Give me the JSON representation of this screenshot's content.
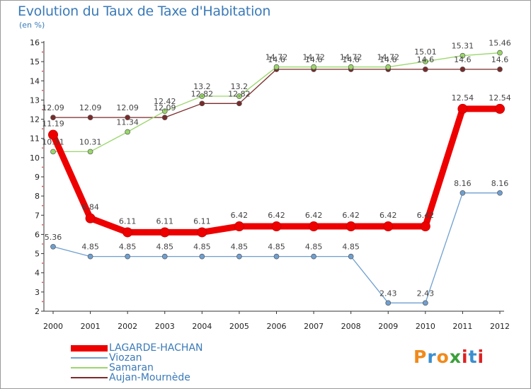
{
  "title": "Evolution du Taux de Taxe d'Habitation",
  "unit": "(en %)",
  "brand": {
    "text": "Proxiti",
    "letter_colors": [
      "#f08a1c",
      "#3a8fd0",
      "#f08a1c",
      "#3aa03a",
      "#d22",
      "#3a8fd0",
      "#d22"
    ]
  },
  "chart_data": {
    "type": "line",
    "title": "Evolution du Taux de Taxe d'Habitation",
    "ylabel": "(en %)",
    "xlabel": "",
    "x": [
      "2000",
      "2001",
      "2002",
      "2003",
      "2004",
      "2005",
      "2006",
      "2007",
      "2008",
      "2009",
      "2010",
      "2011",
      "2012"
    ],
    "yticks": [
      2,
      3,
      4,
      5,
      6,
      7,
      8,
      9,
      10,
      11,
      12,
      13,
      14,
      15,
      16
    ],
    "ylim": [
      2,
      16
    ],
    "grid": false,
    "legend_position": "bottom-left",
    "series": [
      {
        "name": "LAGARDE-HACHAN",
        "color": "#ee0000",
        "values": [
          11.19,
          6.84,
          6.11,
          6.11,
          6.11,
          6.42,
          6.42,
          6.42,
          6.42,
          6.42,
          6.42,
          12.54,
          12.54
        ],
        "labels": [
          "11.19",
          "6.84",
          "6.11",
          "6.11",
          "6.11",
          "6.42",
          "6.42",
          "6.42",
          "6.42",
          "6.42",
          "6.42",
          "12.54",
          "12.54"
        ]
      },
      {
        "name": "Viozan",
        "color": "#6f9fd0",
        "values": [
          5.36,
          4.85,
          4.85,
          4.85,
          4.85,
          4.85,
          4.85,
          4.85,
          4.85,
          2.43,
          2.43,
          8.16,
          8.16
        ],
        "labels": [
          "5.36",
          "4.85",
          "4.85",
          "4.85",
          "4.85",
          "4.85",
          "4.85",
          "4.85",
          "4.85",
          "2.43",
          "2.43",
          "8.16",
          "8.16"
        ]
      },
      {
        "name": "Samaran",
        "color": "#9ad66a",
        "values": [
          10.31,
          10.31,
          11.34,
          12.42,
          13.2,
          13.2,
          14.72,
          14.72,
          14.72,
          14.72,
          15.01,
          15.31,
          15.46
        ],
        "labels": [
          "10.31",
          "10.31",
          "11.34",
          "12.42",
          "13.2",
          "13.2",
          "14.72",
          "14.72",
          "14.72",
          "14.72",
          "15.01",
          "15.31",
          "15.46"
        ]
      },
      {
        "name": "Aujan-Mournède",
        "color": "#7a2a2a",
        "values": [
          12.09,
          12.09,
          12.09,
          12.09,
          12.82,
          12.82,
          14.6,
          14.6,
          14.6,
          14.6,
          14.6,
          14.6,
          14.6
        ],
        "labels": [
          "12.09",
          "12.09",
          "12.09",
          "12.09",
          "12.82",
          "12.82",
          "14.6",
          "14.6",
          "14.6",
          "14.6",
          "14.6",
          "14.6",
          "14.6"
        ]
      }
    ]
  }
}
